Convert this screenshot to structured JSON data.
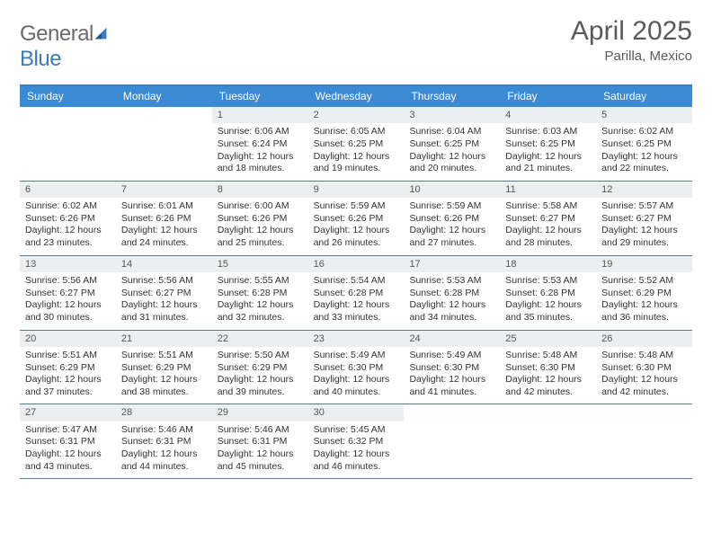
{
  "brand": {
    "part1": "General",
    "part2": "Blue"
  },
  "title": "April 2025",
  "subtitle": "Parilla, Mexico",
  "colors": {
    "header_bar": "#3b8bd4",
    "header_text": "#ffffff",
    "rule": "#3b7bbf",
    "week_divider": "#5a7a9a",
    "daynum_bg": "#eceeef",
    "body_text": "#333333",
    "title_text": "#5a5a5a"
  },
  "layout": {
    "columns": 7,
    "rows": 5,
    "cell_font_size_pt": 8,
    "header_font_size_pt": 9
  },
  "day_names": [
    "Sunday",
    "Monday",
    "Tuesday",
    "Wednesday",
    "Thursday",
    "Friday",
    "Saturday"
  ],
  "weeks": [
    [
      {
        "blank": true
      },
      {
        "blank": true
      },
      {
        "n": "1",
        "sunrise": "6:06 AM",
        "sunset": "6:24 PM",
        "daylight": "12 hours and 18 minutes."
      },
      {
        "n": "2",
        "sunrise": "6:05 AM",
        "sunset": "6:25 PM",
        "daylight": "12 hours and 19 minutes."
      },
      {
        "n": "3",
        "sunrise": "6:04 AM",
        "sunset": "6:25 PM",
        "daylight": "12 hours and 20 minutes."
      },
      {
        "n": "4",
        "sunrise": "6:03 AM",
        "sunset": "6:25 PM",
        "daylight": "12 hours and 21 minutes."
      },
      {
        "n": "5",
        "sunrise": "6:02 AM",
        "sunset": "6:25 PM",
        "daylight": "12 hours and 22 minutes."
      }
    ],
    [
      {
        "n": "6",
        "sunrise": "6:02 AM",
        "sunset": "6:26 PM",
        "daylight": "12 hours and 23 minutes."
      },
      {
        "n": "7",
        "sunrise": "6:01 AM",
        "sunset": "6:26 PM",
        "daylight": "12 hours and 24 minutes."
      },
      {
        "n": "8",
        "sunrise": "6:00 AM",
        "sunset": "6:26 PM",
        "daylight": "12 hours and 25 minutes."
      },
      {
        "n": "9",
        "sunrise": "5:59 AM",
        "sunset": "6:26 PM",
        "daylight": "12 hours and 26 minutes."
      },
      {
        "n": "10",
        "sunrise": "5:59 AM",
        "sunset": "6:26 PM",
        "daylight": "12 hours and 27 minutes."
      },
      {
        "n": "11",
        "sunrise": "5:58 AM",
        "sunset": "6:27 PM",
        "daylight": "12 hours and 28 minutes."
      },
      {
        "n": "12",
        "sunrise": "5:57 AM",
        "sunset": "6:27 PM",
        "daylight": "12 hours and 29 minutes."
      }
    ],
    [
      {
        "n": "13",
        "sunrise": "5:56 AM",
        "sunset": "6:27 PM",
        "daylight": "12 hours and 30 minutes."
      },
      {
        "n": "14",
        "sunrise": "5:56 AM",
        "sunset": "6:27 PM",
        "daylight": "12 hours and 31 minutes."
      },
      {
        "n": "15",
        "sunrise": "5:55 AM",
        "sunset": "6:28 PM",
        "daylight": "12 hours and 32 minutes."
      },
      {
        "n": "16",
        "sunrise": "5:54 AM",
        "sunset": "6:28 PM",
        "daylight": "12 hours and 33 minutes."
      },
      {
        "n": "17",
        "sunrise": "5:53 AM",
        "sunset": "6:28 PM",
        "daylight": "12 hours and 34 minutes."
      },
      {
        "n": "18",
        "sunrise": "5:53 AM",
        "sunset": "6:28 PM",
        "daylight": "12 hours and 35 minutes."
      },
      {
        "n": "19",
        "sunrise": "5:52 AM",
        "sunset": "6:29 PM",
        "daylight": "12 hours and 36 minutes."
      }
    ],
    [
      {
        "n": "20",
        "sunrise": "5:51 AM",
        "sunset": "6:29 PM",
        "daylight": "12 hours and 37 minutes."
      },
      {
        "n": "21",
        "sunrise": "5:51 AM",
        "sunset": "6:29 PM",
        "daylight": "12 hours and 38 minutes."
      },
      {
        "n": "22",
        "sunrise": "5:50 AM",
        "sunset": "6:29 PM",
        "daylight": "12 hours and 39 minutes."
      },
      {
        "n": "23",
        "sunrise": "5:49 AM",
        "sunset": "6:30 PM",
        "daylight": "12 hours and 40 minutes."
      },
      {
        "n": "24",
        "sunrise": "5:49 AM",
        "sunset": "6:30 PM",
        "daylight": "12 hours and 41 minutes."
      },
      {
        "n": "25",
        "sunrise": "5:48 AM",
        "sunset": "6:30 PM",
        "daylight": "12 hours and 42 minutes."
      },
      {
        "n": "26",
        "sunrise": "5:48 AM",
        "sunset": "6:30 PM",
        "daylight": "12 hours and 42 minutes."
      }
    ],
    [
      {
        "n": "27",
        "sunrise": "5:47 AM",
        "sunset": "6:31 PM",
        "daylight": "12 hours and 43 minutes."
      },
      {
        "n": "28",
        "sunrise": "5:46 AM",
        "sunset": "6:31 PM",
        "daylight": "12 hours and 44 minutes."
      },
      {
        "n": "29",
        "sunrise": "5:46 AM",
        "sunset": "6:31 PM",
        "daylight": "12 hours and 45 minutes."
      },
      {
        "n": "30",
        "sunrise": "5:45 AM",
        "sunset": "6:32 PM",
        "daylight": "12 hours and 46 minutes."
      },
      {
        "blank": true
      },
      {
        "blank": true
      },
      {
        "blank": true
      }
    ]
  ],
  "labels": {
    "sunrise_prefix": "Sunrise: ",
    "sunset_prefix": "Sunset: ",
    "daylight_prefix": "Daylight: "
  }
}
